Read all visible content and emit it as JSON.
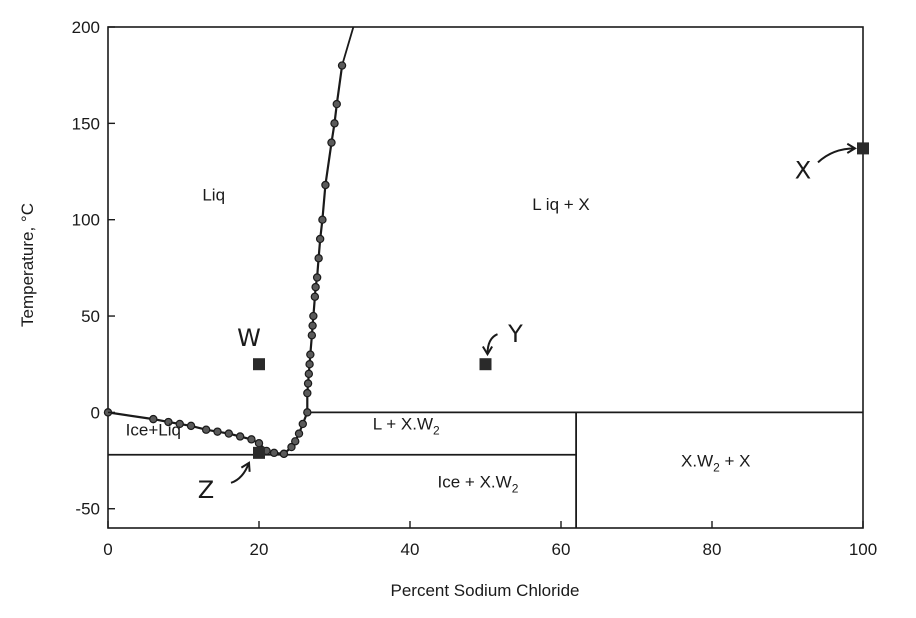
{
  "chart_data": {
    "type": "scatter",
    "title": "",
    "xlabel": "Percent Sodium Chloride",
    "ylabel": "Temperature, °C",
    "xlim": [
      0,
      100
    ],
    "ylim": [
      -60,
      200
    ],
    "xticks": [
      0,
      20,
      40,
      60,
      80,
      100
    ],
    "yticks": [
      -50,
      0,
      50,
      100,
      150,
      200
    ],
    "grid": false,
    "series": [
      {
        "values": [
          {
            "x": 0,
            "y": 0
          },
          {
            "x": 6,
            "y": -3.5
          },
          {
            "x": 8,
            "y": -5
          },
          {
            "x": 9.5,
            "y": -6
          },
          {
            "x": 11,
            "y": -7
          },
          {
            "x": 13,
            "y": -9
          },
          {
            "x": 14.5,
            "y": -10
          },
          {
            "x": 16,
            "y": -11
          },
          {
            "x": 17.5,
            "y": -12.5
          },
          {
            "x": 19,
            "y": -14
          },
          {
            "x": 20,
            "y": -16
          },
          {
            "x": 21,
            "y": -20
          },
          {
            "x": 22,
            "y": -21
          },
          {
            "x": 23.3,
            "y": -21.5
          }
        ]
      },
      {
        "values": [
          {
            "x": 23.3,
            "y": -21.5
          },
          {
            "x": 24.3,
            "y": -18
          },
          {
            "x": 24.8,
            "y": -15
          },
          {
            "x": 25.3,
            "y": -11
          },
          {
            "x": 25.8,
            "y": -6
          },
          {
            "x": 26.4,
            "y": 0
          },
          {
            "x": 26.4,
            "y": 10
          },
          {
            "x": 26.5,
            "y": 15
          },
          {
            "x": 26.6,
            "y": 20
          },
          {
            "x": 26.7,
            "y": 25
          },
          {
            "x": 26.8,
            "y": 30
          },
          {
            "x": 27,
            "y": 40
          },
          {
            "x": 27.1,
            "y": 45
          },
          {
            "x": 27.2,
            "y": 50
          },
          {
            "x": 27.4,
            "y": 60
          },
          {
            "x": 27.5,
            "y": 65
          },
          {
            "x": 27.7,
            "y": 70
          },
          {
            "x": 27.9,
            "y": 80
          },
          {
            "x": 28.1,
            "y": 90
          },
          {
            "x": 28.4,
            "y": 100
          },
          {
            "x": 28.8,
            "y": 118
          },
          {
            "x": 29.6,
            "y": 140
          },
          {
            "x": 30,
            "y": 150
          },
          {
            "x": 30.3,
            "y": 160
          },
          {
            "x": 31,
            "y": 180
          }
        ]
      }
    ],
    "boundaries": [
      {
        "x1": 0,
        "y1": -22,
        "x2": 62,
        "y2": -22
      },
      {
        "x1": 26.4,
        "y1": 0,
        "x2": 100,
        "y2": 0
      },
      {
        "x1": 62,
        "y1": 0,
        "x2": 62,
        "y2": -60
      },
      {
        "x1": 31,
        "y1": 180,
        "x2": 32.5,
        "y2": 200
      }
    ],
    "marked_points": [
      {
        "label": "W",
        "x": 20,
        "y": 25
      },
      {
        "label": "Y",
        "x": 50,
        "y": 25
      },
      {
        "label": "X",
        "x": 100,
        "y": 137
      },
      {
        "label": "Z",
        "x": 20,
        "y": -21
      }
    ],
    "regions": [
      {
        "text": "Liq",
        "x": 14,
        "y": 110
      },
      {
        "text": "L iq + X",
        "x": 60,
        "y": 105
      },
      {
        "text": "L + X.W",
        "sub": "2",
        "x": 39.5,
        "y": -9
      },
      {
        "text": "Ice+Liq",
        "x": 6,
        "y": -12
      },
      {
        "text": "Ice + X.W",
        "sub": "2",
        "x": 49,
        "y": -39
      },
      {
        "text": "X.W",
        "sub": "2",
        "suffix": " + X",
        "x": 80.5,
        "y": -28
      }
    ]
  }
}
